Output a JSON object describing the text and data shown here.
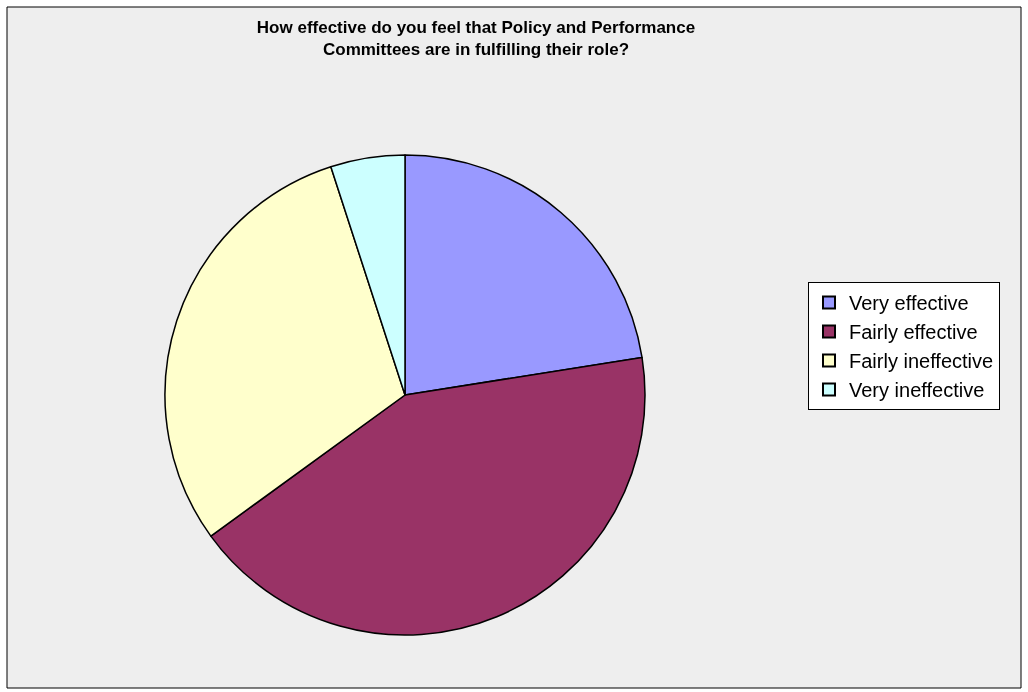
{
  "chart_data": {
    "type": "pie",
    "title": "How effective do you feel that Policy and Performance\nCommittees are in fulfilling their role?",
    "categories": [
      "Very effective",
      "Fairly effective",
      "Fairly ineffective",
      "Very ineffective"
    ],
    "values": [
      22.5,
      42.5,
      30,
      5
    ],
    "colors": [
      "#9999ff",
      "#993366",
      "#ffffcc",
      "#ccffff"
    ],
    "legend": "right"
  }
}
